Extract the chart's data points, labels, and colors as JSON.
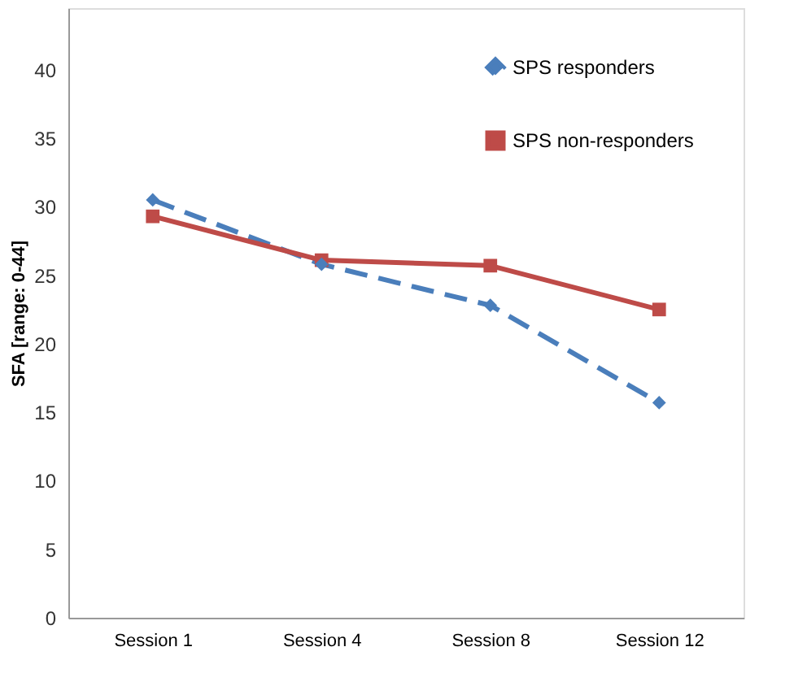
{
  "chart_data": {
    "type": "line",
    "ylabel": "SFA  [range: 0-44]",
    "categories": [
      "Session 1",
      "Session 4",
      "Session 8",
      "Session 12"
    ],
    "series": [
      {
        "name": "SPS responders",
        "color": "#4a7ebb",
        "values": [
          30.5,
          25.8,
          22.8,
          15.7
        ],
        "marker": "diamond",
        "line_style": "dashed"
      },
      {
        "name": "SPS non-responders",
        "color": "#be4b48",
        "values": [
          29.3,
          26.1,
          25.7,
          22.5
        ],
        "marker": "square",
        "line_style": "solid"
      }
    ],
    "ylim": [
      0,
      44.5
    ],
    "yticks": [
      0,
      5,
      10,
      15,
      20,
      25,
      30,
      35,
      40
    ],
    "grid": false,
    "legend": "top right"
  }
}
